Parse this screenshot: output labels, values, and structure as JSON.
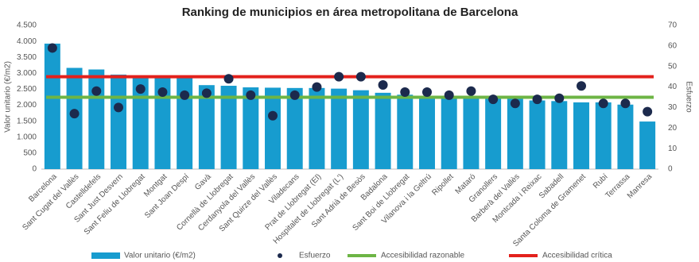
{
  "chart_data": {
    "type": "bar-dot",
    "title": "Ranking de municipios en área metropolitana de Barcelona",
    "y_label": "Valor unitario (€/m2)",
    "y2_label": "Esfuerzo",
    "categories": [
      "Barcelona",
      "Sant Cugat del Vallès",
      "Castelldefels",
      "Sant Just Desvern",
      "Sant Feliu de Llobregat",
      "Montgat",
      "Sant Joan Despí",
      "Gavà",
      "Cornellà de Llobregat",
      "Cerdanyola del Vallès",
      "Sant Quirze del Vallès",
      "Viladecans",
      "Prat de Llobregat (El)",
      "Hospitalet de Llobregat (L')",
      "Sant Adrià de Besòs",
      "Badalona",
      "Sant Boi de Llobregat",
      "Vilanova i la Geltrú",
      "Ripollet",
      "Mataró",
      "Granollers",
      "Barberà del Vallès",
      "Montcada i Reixac",
      "Sabadell",
      "Santa Coloma de Gramenet",
      "Rubí",
      "Terrassa",
      "Manresa"
    ],
    "series": [
      {
        "name": "Valor unitario (€/m2)",
        "color": "#179ccf",
        "values": [
          3930,
          3170,
          3120,
          2960,
          2870,
          2870,
          2860,
          2630,
          2610,
          2560,
          2550,
          2540,
          2540,
          2520,
          2470,
          2390,
          2330,
          2260,
          2250,
          2250,
          2200,
          2200,
          2150,
          2130,
          2090,
          2090,
          2020,
          1490
        ]
      },
      {
        "name": "Esfuerzo",
        "color": "#1c2a4d",
        "axis": "y2",
        "values": [
          59,
          27,
          38,
          30,
          39,
          37.5,
          36,
          37,
          44,
          36,
          26,
          36,
          40,
          45,
          45,
          41,
          37.5,
          37.5,
          36,
          38,
          34,
          32,
          34,
          34.5,
          40.5,
          32,
          32,
          28
        ]
      }
    ],
    "lines": [
      {
        "name": "Accesibilidad razonable",
        "color": "#6db545",
        "axis": "y2",
        "value": 35
      },
      {
        "name": "Accesibilidad crítica",
        "color": "#e3211c",
        "axis": "y2",
        "value": 45
      }
    ],
    "ylim": [
      0,
      4500
    ],
    "yticks": [
      0,
      500,
      {
        "value": 1000,
        "label": "1.000"
      },
      {
        "value": 1500,
        "label": "1.500"
      },
      {
        "value": 2000,
        "label": "2.000"
      },
      {
        "value": 2500,
        "label": "2.500"
      },
      {
        "value": 3000,
        "label": "3.000"
      },
      {
        "value": 3500,
        "label": "3.500"
      },
      {
        "value": 4000,
        "label": "4.000"
      },
      {
        "value": 4500,
        "label": "4.500"
      }
    ],
    "y2lim": [
      0,
      70
    ],
    "y2ticks": [
      0,
      10,
      20,
      30,
      40,
      50,
      60,
      70
    ]
  }
}
